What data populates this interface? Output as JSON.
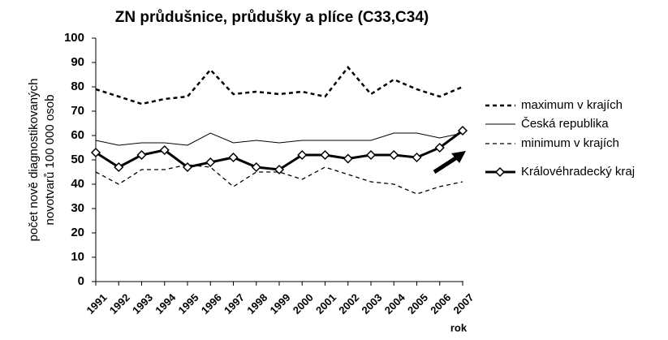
{
  "chart_data": {
    "type": "line",
    "title": "ZN průdušnice, průdušky a plíce (C33,C34)",
    "y_label": [
      "počet nově diagnostikovaných",
      "novotvarů 100 000 osob"
    ],
    "x_label": "rok",
    "categories": [
      "1991",
      "1992",
      "1993",
      "1994",
      "1995",
      "1996",
      "1997",
      "1998",
      "1999",
      "2000",
      "2001",
      "2002",
      "2003",
      "2004",
      "2005",
      "2006",
      "2007"
    ],
    "ylim": [
      0,
      100
    ],
    "yticks": [
      0,
      10,
      20,
      30,
      40,
      50,
      60,
      70,
      80,
      90,
      100
    ],
    "series": [
      {
        "name": "maximum v krajích",
        "color": "#000000",
        "dash": "dashed-bold",
        "values": [
          79,
          76,
          73,
          75,
          76,
          87,
          77,
          78,
          77,
          78,
          76,
          88,
          77,
          83,
          79,
          76,
          80
        ]
      },
      {
        "name": "Česká republika",
        "color": "#000000",
        "dash": "solid",
        "values": [
          58,
          56,
          57,
          57,
          56,
          61,
          57,
          58,
          57,
          58,
          58,
          58,
          58,
          61,
          61,
          59,
          61
        ]
      },
      {
        "name": "minimum v krajích",
        "color": "#000000",
        "dash": "dashed",
        "values": [
          45,
          40,
          46,
          46,
          48,
          47,
          39,
          45,
          45,
          42,
          47,
          44,
          41,
          40,
          36,
          39,
          41
        ]
      },
      {
        "name": "Královéhradecký kraj",
        "color": "#000000",
        "dash": "solid-bold",
        "marker": "diamond",
        "values": [
          53,
          47,
          52,
          54,
          47,
          49,
          51,
          47,
          46,
          52,
          52,
          50.5,
          52,
          52,
          51,
          55,
          62
        ]
      }
    ]
  }
}
